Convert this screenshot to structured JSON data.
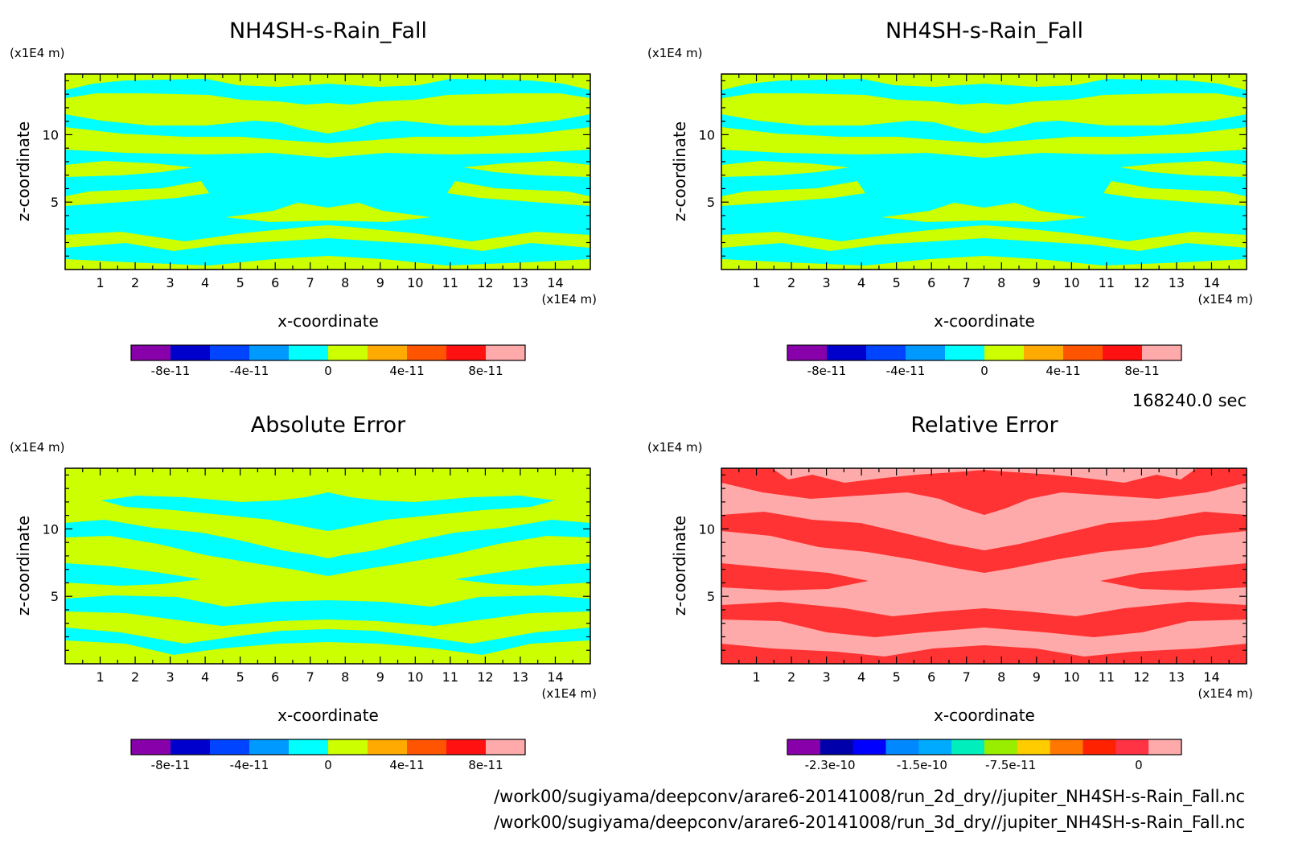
{
  "time_label": "168240.0 sec",
  "footer": {
    "file1": "/work00/sugiyama/deepconv/arare6-20141008/run_2d_dry//jupiter_NH4SH-s-Rain_Fall.nc",
    "file2": "/work00/sugiyama/deepconv/arare6-20141008/run_3d_dry//jupiter_NH4SH-s-Rain_Fall.nc"
  },
  "colors": {
    "cyan": "#00ffff",
    "yellow_green": "#ccff00",
    "pink": "#ffaaaa",
    "red": "#ff3333"
  },
  "chart_data": [
    {
      "id": "p1",
      "type": "heatmap",
      "title": "NH4SH-s-Rain_Fall",
      "xlabel": "x-coordinate",
      "ylabel": "z-coordinate",
      "x_unit": "(x1E4 m)",
      "y_unit": "(x1E4 m)",
      "xlim": [
        0,
        15
      ],
      "ylim": [
        0,
        14.5
      ],
      "xticks": [
        "1",
        "2",
        "3",
        "4",
        "5",
        "6",
        "7",
        "8",
        "9",
        "10",
        "11",
        "12",
        "13",
        "14"
      ],
      "yticks": [
        "5",
        "10"
      ],
      "colorbar": {
        "colors": [
          "#8800aa",
          "#0000cc",
          "#0044ff",
          "#0099ff",
          "#00ffff",
          "#ccff00",
          "#ffaa00",
          "#ff5500",
          "#ff1111",
          "#ffaaaa"
        ],
        "labels": [
          "-8e-11",
          "-4e-11",
          "0",
          "4e-11",
          "8e-11"
        ]
      }
    },
    {
      "id": "p2",
      "type": "heatmap",
      "title": "NH4SH-s-Rain_Fall",
      "xlabel": "x-coordinate",
      "ylabel": "z-coordinate",
      "x_unit": "(x1E4 m)",
      "y_unit": "(x1E4 m)",
      "xlim": [
        0,
        15
      ],
      "ylim": [
        0,
        14.5
      ],
      "xticks": [
        "1",
        "2",
        "3",
        "4",
        "5",
        "6",
        "7",
        "8",
        "9",
        "10",
        "11",
        "12",
        "13",
        "14"
      ],
      "yticks": [
        "5",
        "10"
      ],
      "colorbar": {
        "colors": [
          "#8800aa",
          "#0000cc",
          "#0044ff",
          "#0099ff",
          "#00ffff",
          "#ccff00",
          "#ffaa00",
          "#ff5500",
          "#ff1111",
          "#ffaaaa"
        ],
        "labels": [
          "-8e-11",
          "-4e-11",
          "0",
          "4e-11",
          "8e-11"
        ]
      }
    },
    {
      "id": "p3",
      "type": "heatmap",
      "title": "Absolute Error",
      "xlabel": "x-coordinate",
      "ylabel": "z-coordinate",
      "x_unit": "(x1E4 m)",
      "y_unit": "(x1E4 m)",
      "xlim": [
        0,
        15
      ],
      "ylim": [
        0,
        14.5
      ],
      "xticks": [
        "1",
        "2",
        "3",
        "4",
        "5",
        "6",
        "7",
        "8",
        "9",
        "10",
        "11",
        "12",
        "13",
        "14"
      ],
      "yticks": [
        "5",
        "10"
      ],
      "colorbar": {
        "colors": [
          "#8800aa",
          "#0000cc",
          "#0044ff",
          "#0099ff",
          "#00ffff",
          "#ccff00",
          "#ffaa00",
          "#ff5500",
          "#ff1111",
          "#ffaaaa"
        ],
        "labels": [
          "-8e-11",
          "-4e-11",
          "0",
          "4e-11",
          "8e-11"
        ]
      }
    },
    {
      "id": "p4",
      "type": "heatmap",
      "title": "Relative Error",
      "xlabel": "x-coordinate",
      "ylabel": "z-coordinate",
      "x_unit": "(x1E4 m)",
      "y_unit": "(x1E4 m)",
      "xlim": [
        0,
        15
      ],
      "ylim": [
        0,
        14.5
      ],
      "xticks": [
        "1",
        "2",
        "3",
        "4",
        "5",
        "6",
        "7",
        "8",
        "9",
        "10",
        "11",
        "12",
        "13",
        "14"
      ],
      "yticks": [
        "5",
        "10"
      ],
      "colorbar": {
        "colors": [
          "#8800aa",
          "#0000aa",
          "#0000ff",
          "#0088ff",
          "#00aaff",
          "#00eebb",
          "#99ee00",
          "#ffcc00",
          "#ff7700",
          "#ff2200",
          "#ff3344",
          "#ffaaaa"
        ],
        "labels": [
          "-2.3e-10",
          "-1.5e-10",
          "-7.5e-11",
          "0"
        ]
      }
    }
  ]
}
